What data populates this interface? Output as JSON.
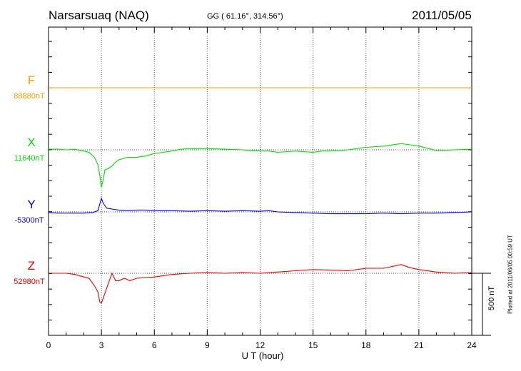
{
  "header": {
    "station": "Narsarsuaq (NAQ)",
    "coords": "GG ( 61.16°, 314.56°)",
    "date": "2011/05/05"
  },
  "footer": {
    "plotted": "Plotted at 2011/06/05 00:59 UT"
  },
  "scale_label": "500 nT",
  "colors": {
    "F": "#f0a000",
    "X": "#00dd00",
    "Y": "#0000ee",
    "Z": "#ee0000"
  },
  "chart_data": {
    "type": "line",
    "xlabel": "U T (hour)",
    "xlim": [
      0,
      24
    ],
    "xticks": [
      "0",
      "3",
      "6",
      "9",
      "12",
      "15",
      "18",
      "21",
      "24"
    ],
    "scale_nT": 500,
    "series": [
      {
        "name": "F",
        "base_label": "88880nT",
        "x": [
          0,
          24
        ],
        "y": [
          0,
          0
        ]
      },
      {
        "name": "X",
        "base_label": "11640nT",
        "x": [
          0,
          0.5,
          1,
          1.5,
          2,
          2.3,
          2.6,
          2.8,
          2.9,
          3.0,
          3.1,
          3.2,
          3.4,
          3.6,
          3.8,
          4.0,
          4.5,
          5,
          5.5,
          6,
          6.5,
          7,
          7.5,
          8,
          9,
          10,
          11,
          12,
          12.5,
          13,
          14,
          15,
          15.5,
          16,
          17,
          18,
          19,
          20,
          20.5,
          21,
          22,
          23,
          24
        ],
        "y": [
          5,
          6,
          0,
          4,
          -10,
          -20,
          -60,
          -120,
          -200,
          -300,
          -240,
          -160,
          -150,
          -130,
          -100,
          -80,
          -60,
          -60,
          -50,
          -30,
          -20,
          -10,
          5,
          10,
          10,
          5,
          0,
          -10,
          -10,
          -20,
          -10,
          -20,
          -10,
          -10,
          0,
          20,
          30,
          50,
          40,
          30,
          -5,
          0,
          5
        ]
      },
      {
        "name": "Y",
        "base_label": "-5300nT",
        "x": [
          0,
          0.5,
          1,
          1.5,
          2,
          2.5,
          2.8,
          3.0,
          3.1,
          3.3,
          3.5,
          3.7,
          4,
          4.5,
          5,
          5.5,
          6,
          7,
          8,
          9,
          10,
          11,
          12,
          12.5,
          13,
          14,
          15,
          16,
          17,
          18,
          19,
          20,
          21,
          22,
          23,
          24
        ],
        "y": [
          -5,
          -10,
          -10,
          -10,
          -10,
          -5,
          10,
          110,
          70,
          30,
          25,
          20,
          15,
          10,
          15,
          15,
          10,
          10,
          5,
          10,
          5,
          10,
          5,
          10,
          0,
          -5,
          -10,
          -15,
          -15,
          -15,
          -10,
          -15,
          -10,
          -10,
          -5,
          0
        ]
      },
      {
        "name": "Z",
        "base_label": "52980nT",
        "x": [
          0,
          0.5,
          1,
          1.5,
          2,
          2.3,
          2.6,
          2.8,
          2.9,
          3.0,
          3.1,
          3.3,
          3.6,
          3.8,
          4.0,
          4.3,
          4.6,
          5,
          6,
          7,
          8,
          9,
          10,
          11,
          12,
          13,
          14,
          15,
          16,
          17,
          18,
          19,
          20,
          20.5,
          21,
          22,
          23,
          24
        ],
        "y": [
          0,
          0,
          0,
          -10,
          -30,
          -40,
          -100,
          -150,
          -230,
          -240,
          -200,
          -120,
          0,
          -60,
          -60,
          -40,
          -60,
          -40,
          -30,
          -10,
          0,
          5,
          0,
          5,
          0,
          10,
          20,
          30,
          25,
          20,
          40,
          40,
          70,
          45,
          30,
          10,
          0,
          5
        ]
      }
    ]
  }
}
